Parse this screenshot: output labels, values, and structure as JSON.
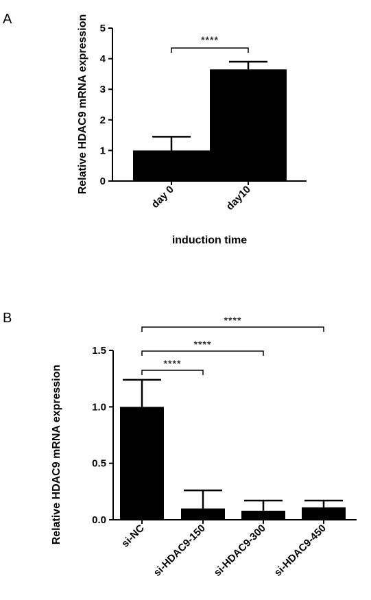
{
  "chart_data": [
    {
      "type": "bar",
      "panel_label": "A",
      "categories": [
        "day 0",
        "day10"
      ],
      "values": [
        1.0,
        3.65
      ],
      "error": [
        0.45,
        0.25
      ],
      "ylabel": "Relative HDAC9 mRNA expression",
      "xlabel": "induction time",
      "ylim": [
        0,
        5
      ],
      "yticks": [
        "0",
        "1",
        "2",
        "3",
        "4",
        "5"
      ],
      "bar_color": "#000000",
      "significance": [
        {
          "from": 0,
          "to": 1,
          "label": "****"
        }
      ]
    },
    {
      "type": "bar",
      "panel_label": "B",
      "categories": [
        "si-NC",
        "si-HDAC9-150",
        "si-HDAC9-300",
        "si-HDAC9-450"
      ],
      "values": [
        1.0,
        0.1,
        0.08,
        0.11
      ],
      "error": [
        0.24,
        0.16,
        0.09,
        0.06
      ],
      "ylabel": "Relative HDAC9 mRNA expression",
      "xlabel": "",
      "ylim": [
        0,
        1.5
      ],
      "yticks": [
        "0.0",
        "0.5",
        "1.0",
        "1.5"
      ],
      "bar_color": "#000000",
      "significance": [
        {
          "from": 0,
          "to": 1,
          "label": "****"
        },
        {
          "from": 0,
          "to": 2,
          "label": "****"
        },
        {
          "from": 0,
          "to": 3,
          "label": "****"
        }
      ]
    }
  ]
}
